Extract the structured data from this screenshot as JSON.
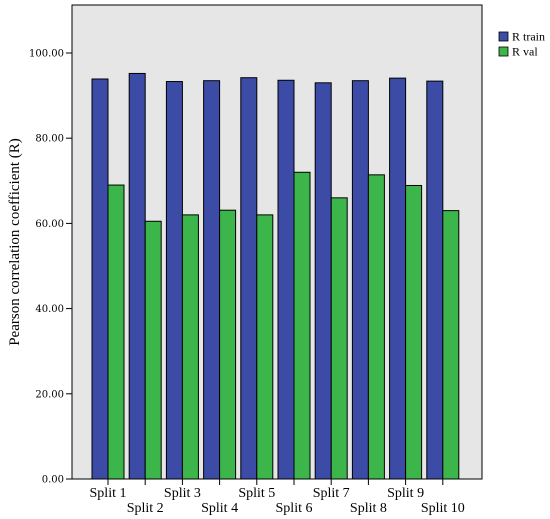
{
  "chart_data": {
    "type": "bar",
    "categories": [
      "Split 1",
      "Split 2",
      "Split 3",
      "Split 4",
      "Split 5",
      "Split 6",
      "Split 7",
      "Split 8",
      "Split 9",
      "Split 10"
    ],
    "series": [
      {
        "name": "R train",
        "color": "#3b4ba6",
        "values": [
          93.9,
          95.2,
          93.3,
          93.5,
          94.2,
          93.6,
          93.0,
          93.5,
          94.1,
          93.4
        ]
      },
      {
        "name": "R val",
        "color": "#3cb64a",
        "values": [
          69.0,
          60.5,
          62.0,
          63.1,
          62.0,
          72.0,
          66.0,
          71.4,
          68.9,
          63.0
        ]
      }
    ],
    "title": "",
    "xlabel": "",
    "ylabel": "Pearson correlation coefficient (R)",
    "ylim": [
      0,
      100
    ],
    "yticks": [
      "0.00",
      "20.00",
      "40.00",
      "60.00",
      "80.00",
      "100.00"
    ],
    "grid": false,
    "legend": "top-right",
    "plot_background": "#e6e6e6"
  }
}
